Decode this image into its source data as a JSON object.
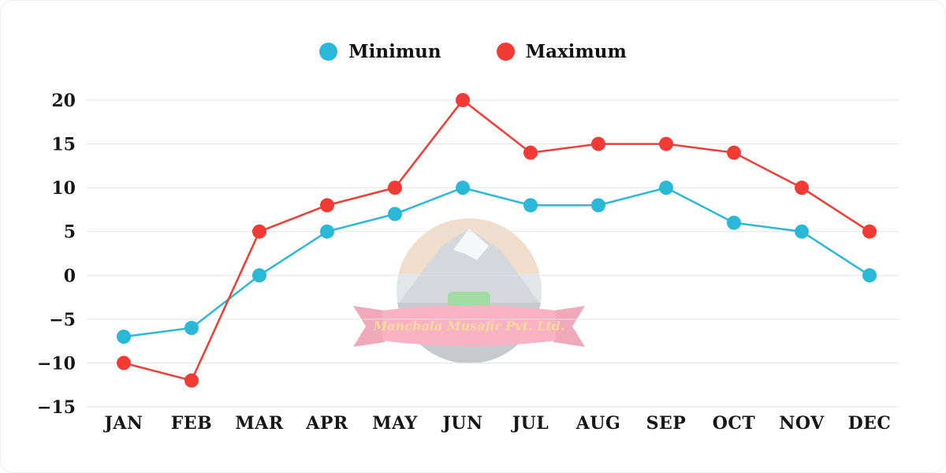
{
  "chart_data": {
    "type": "line",
    "categories": [
      "JAN",
      "FEB",
      "MAR",
      "APR",
      "MAY",
      "JUN",
      "JUL",
      "AUG",
      "SEP",
      "OCT",
      "NOV",
      "DEC"
    ],
    "series": [
      {
        "name": "Minimun",
        "color": "#29b8d8",
        "values": [
          -7,
          -6,
          0,
          5,
          7,
          10,
          8,
          8,
          10,
          6,
          5,
          0
        ]
      },
      {
        "name": "Maximum",
        "color": "#f23b34",
        "values": [
          -10,
          -12,
          5,
          8,
          10,
          20,
          14,
          15,
          15,
          14,
          10,
          5
        ]
      }
    ],
    "title": "",
    "xlabel": "",
    "ylabel": "",
    "ylim": [
      -15,
      20
    ],
    "yticks": [
      -15,
      -10,
      -5,
      0,
      5,
      10,
      15,
      20
    ],
    "grid": true,
    "legend_position": "top-center"
  },
  "legend": {
    "minimum_label": "Minimun",
    "maximum_label": "Maximum"
  },
  "watermark": {
    "text": "Manchala Musafir Pvt. Ltd.",
    "ribbon_color": "#f2688b",
    "gold_color": "#f0b93c"
  }
}
